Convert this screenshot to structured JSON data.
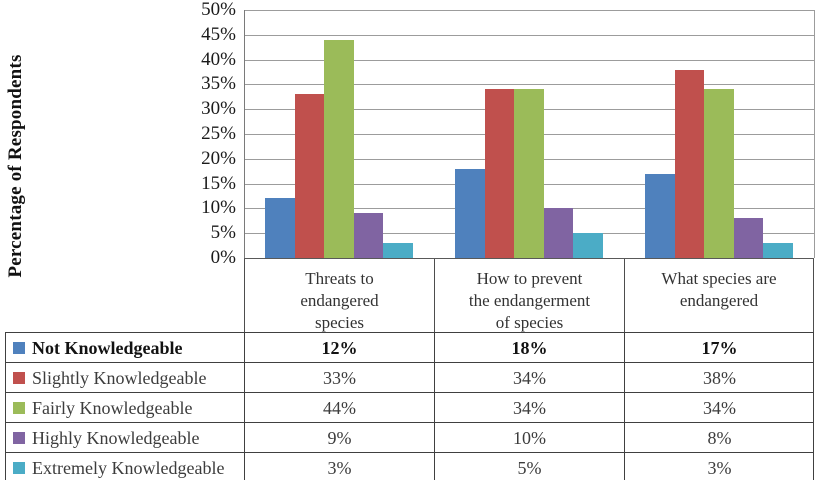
{
  "page": {
    "background": "#ffffff"
  },
  "axis": {
    "y_title": "Percentage of Respondents",
    "ytick_labels": [
      "0%",
      "5%",
      "10%",
      "15%",
      "20%",
      "25%",
      "30%",
      "35%",
      "40%",
      "45%",
      "50%"
    ]
  },
  "chart_data": {
    "type": "bar",
    "title": "",
    "xlabel": "",
    "ylabel": "Percentage of Respondents",
    "ylim": [
      0,
      50
    ],
    "ytick_step": 5,
    "grid": true,
    "legend_position": "data-table-below-chart",
    "categories": [
      "Threats to endangered species",
      "How to prevent the endangerment of species",
      "What species are endangered"
    ],
    "category_label_lines": [
      [
        "Threats to",
        "endangered",
        "species"
      ],
      [
        "How to prevent",
        "the endangerment",
        "of species"
      ],
      [
        "What species are",
        "endangered"
      ]
    ],
    "series": [
      {
        "name": "Not Knowledgeable",
        "color": "#4F81BD",
        "values": [
          12,
          18,
          17
        ],
        "labels": [
          "12%",
          "18%",
          "17%"
        ]
      },
      {
        "name": "Slightly Knowledgeable",
        "color": "#C0504D",
        "values": [
          33,
          34,
          38
        ],
        "labels": [
          "33%",
          "34%",
          "38%"
        ]
      },
      {
        "name": "Fairly Knowledgeable",
        "color": "#9BBB59",
        "values": [
          44,
          34,
          34
        ],
        "labels": [
          "44%",
          "34%",
          "34%"
        ]
      },
      {
        "name": "Highly Knowledgeable",
        "color": "#8064A2",
        "values": [
          9,
          10,
          8
        ],
        "labels": [
          "9%",
          "10%",
          "8%"
        ]
      },
      {
        "name": "Extremely Knowledgeable",
        "color": "#4BACC6",
        "values": [
          3,
          5,
          3
        ],
        "labels": [
          "3%",
          "5%",
          "3%"
        ]
      }
    ]
  },
  "styles": {
    "gridline_color": "#9c9c9c",
    "axis_line_color": "#595959",
    "table_border_color": "#404040",
    "text_color": "#1a1a1a"
  }
}
